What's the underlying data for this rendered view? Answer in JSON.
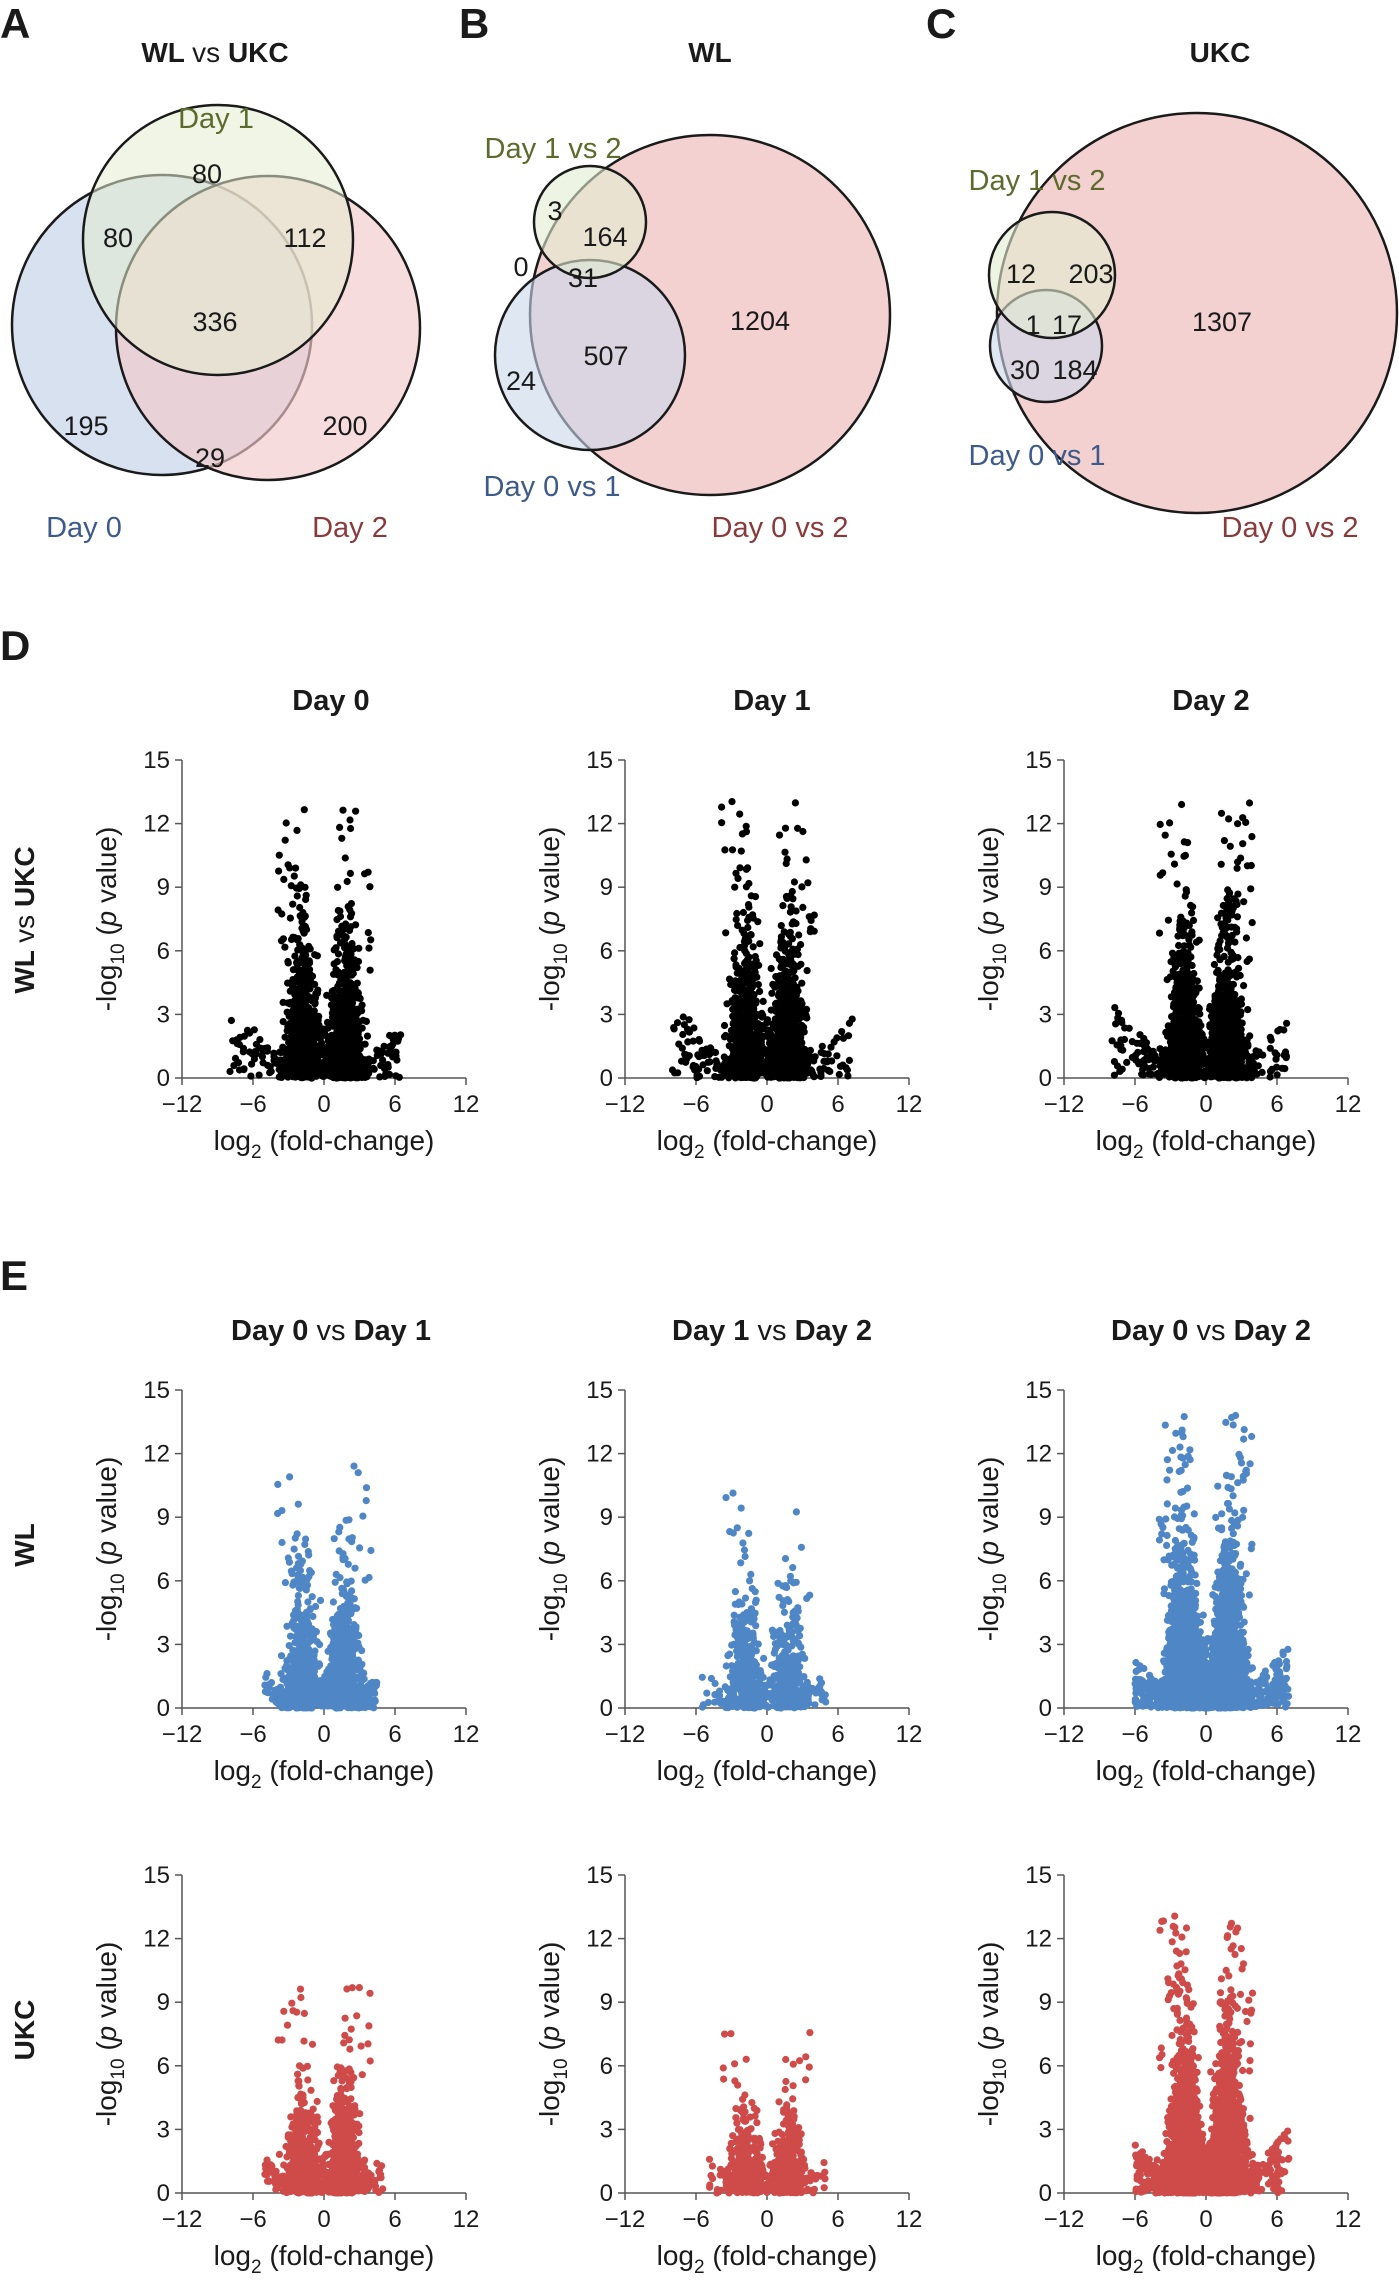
{
  "panels": {
    "A": "A",
    "B": "B",
    "C": "C",
    "D": "D",
    "E": "E"
  },
  "venn": {
    "A": {
      "title": {
        "left": "WL",
        "vs": "vs",
        "right": "UKC"
      },
      "labels": {
        "day1": "Day 1",
        "day0": "Day 0",
        "day2": "Day 2"
      },
      "counts": {
        "day1_only": "80",
        "day0_day1": "80",
        "day1_day2": "112",
        "all": "336",
        "day0_only": "195",
        "day0_day2": "29",
        "day2_only": "200"
      },
      "colors": {
        "day0": "#c9d7ea",
        "day1": "#e3ecd0",
        "day2": "#f1c9c9"
      }
    },
    "B": {
      "title": "WL",
      "labels": {
        "d12": "Day 1 vs 2",
        "d01": "Day 0 vs 1",
        "d02": "Day 0 vs 2"
      },
      "counts": {
        "d12_only": "3",
        "d12_d02": "164",
        "d12_d01": "0",
        "all": "31",
        "d02_only": "1204",
        "d01_d02": "507",
        "d01_only": "24"
      }
    },
    "C": {
      "title": "UKC",
      "labels": {
        "d12": "Day 1 vs 2",
        "d01": "Day 0 vs 1",
        "d02": "Day 0 vs 2"
      },
      "counts": {
        "d12_only": "12",
        "d12_d02": "203",
        "d12_d01": "1",
        "all": "17",
        "d02_only": "1307",
        "d01_only": "30",
        "d01_d02": "184"
      }
    }
  },
  "row_labels": {
    "D": {
      "left": "WL",
      "vs": "vs",
      "right": "UKC"
    },
    "E_wl": "WL",
    "E_ukc": "UKC"
  },
  "colors": {
    "black": "#000000",
    "blue": "#4f86c6",
    "red": "#cf4b4a"
  },
  "chart_data": [
    {
      "type": "scatter",
      "id": "D0",
      "title": "Day 0",
      "color": "black",
      "xlim": [
        -12,
        12
      ],
      "ylim": [
        0,
        15
      ],
      "xticks": [
        "-12",
        "-6",
        "0",
        "6",
        "12"
      ],
      "yticks": [
        "0",
        "3",
        "6",
        "9",
        "12",
        "15"
      ],
      "xlabel": "log2 (fold-change)",
      "ylabel": "-log10 (p value)",
      "spread": {
        "left": -8,
        "right": 6.5,
        "peakY": 13.2,
        "density": 1
      }
    },
    {
      "type": "scatter",
      "id": "D1",
      "title": "Day 1",
      "color": "black",
      "xlim": [
        -12,
        12
      ],
      "ylim": [
        0,
        15
      ],
      "xticks": [
        "-12",
        "-6",
        "0",
        "6",
        "12"
      ],
      "yticks": [
        "0",
        "3",
        "6",
        "9",
        "12",
        "15"
      ],
      "xlabel": "log2 (fold-change)",
      "ylabel": "-log10 (p value)",
      "spread": {
        "left": -8,
        "right": 7.5,
        "peakY": 13.1,
        "density": 1
      }
    },
    {
      "type": "scatter",
      "id": "D2",
      "title": "Day 2",
      "color": "black",
      "xlim": [
        -12,
        12
      ],
      "ylim": [
        0,
        15
      ],
      "xticks": [
        "-12",
        "-6",
        "0",
        "6",
        "12"
      ],
      "yticks": [
        "0",
        "3",
        "6",
        "9",
        "12",
        "15"
      ],
      "xlabel": "log2 (fold-change)",
      "ylabel": "-log10 (p value)",
      "spread": {
        "left": -8,
        "right": 7,
        "peakY": 13.3,
        "density": 1.1
      }
    },
    {
      "type": "scatter",
      "id": "E_wl_01",
      "title": {
        "a": "Day 0",
        "vs": "vs",
        "b": "Day 1"
      },
      "color": "blue",
      "xlim": [
        -12,
        12
      ],
      "ylim": [
        0,
        15
      ],
      "xticks": [
        "-12",
        "-6",
        "0",
        "6",
        "12"
      ],
      "yticks": [
        "0",
        "3",
        "6",
        "9",
        "12",
        "15"
      ],
      "xlabel": "log2 (fold-change)",
      "ylabel": "-log10 (p value)",
      "spread": {
        "left": -5,
        "right": 4.5,
        "peakY": 11.6,
        "density": 0.8
      }
    },
    {
      "type": "scatter",
      "id": "E_wl_12",
      "title": {
        "a": "Day 1",
        "vs": "vs",
        "b": "Day 2"
      },
      "color": "blue",
      "xlim": [
        -12,
        12
      ],
      "ylim": [
        0,
        15
      ],
      "xticks": [
        "-12",
        "-6",
        "0",
        "6",
        "12"
      ],
      "yticks": [
        "0",
        "3",
        "6",
        "9",
        "12",
        "15"
      ],
      "xlabel": "log2 (fold-change)",
      "ylabel": "-log10 (p value)",
      "spread": {
        "left": -5.5,
        "right": 5,
        "peakY": 10.6,
        "density": 0.45
      }
    },
    {
      "type": "scatter",
      "id": "E_wl_02",
      "title": {
        "a": "Day 0",
        "vs": "vs",
        "b": "Day 2"
      },
      "color": "blue",
      "xlim": [
        -12,
        12
      ],
      "ylim": [
        0,
        15
      ],
      "xticks": [
        "-12",
        "-6",
        "0",
        "6",
        "12"
      ],
      "yticks": [
        "0",
        "3",
        "6",
        "9",
        "12",
        "15"
      ],
      "xlabel": "log2 (fold-change)",
      "ylabel": "-log10 (p value)",
      "spread": {
        "left": -6,
        "right": 7,
        "peakY": 13.8,
        "density": 2.2
      }
    },
    {
      "type": "scatter",
      "id": "E_ukc_01",
      "color": "red",
      "xlim": [
        -12,
        12
      ],
      "ylim": [
        0,
        15
      ],
      "xticks": [
        "-12",
        "-6",
        "0",
        "6",
        "12"
      ],
      "yticks": [
        "0",
        "3",
        "6",
        "9",
        "12",
        "15"
      ],
      "xlabel": "log2 (fold-change)",
      "ylabel": "-log10 (p value)",
      "spread": {
        "left": -5,
        "right": 5,
        "peakY": 9.7,
        "density": 0.7
      }
    },
    {
      "type": "scatter",
      "id": "E_ukc_12",
      "color": "red",
      "xlim": [
        -12,
        12
      ],
      "ylim": [
        0,
        15
      ],
      "xticks": [
        "-12",
        "-6",
        "0",
        "6",
        "12"
      ],
      "yticks": [
        "0",
        "3",
        "6",
        "9",
        "12",
        "15"
      ],
      "xlabel": "log2 (fold-change)",
      "ylabel": "-log10 (p value)",
      "spread": {
        "left": -5,
        "right": 5,
        "peakY": 7.7,
        "density": 0.4
      }
    },
    {
      "type": "scatter",
      "id": "E_ukc_02",
      "color": "red",
      "xlim": [
        -12,
        12
      ],
      "ylim": [
        0,
        15
      ],
      "xticks": [
        "-12",
        "-6",
        "0",
        "6",
        "12"
      ],
      "yticks": [
        "0",
        "3",
        "6",
        "9",
        "12",
        "15"
      ],
      "xlabel": "log2 (fold-change)",
      "ylabel": "-log10 (p value)",
      "spread": {
        "left": -6,
        "right": 7,
        "peakY": 13.1,
        "density": 2
      }
    }
  ]
}
